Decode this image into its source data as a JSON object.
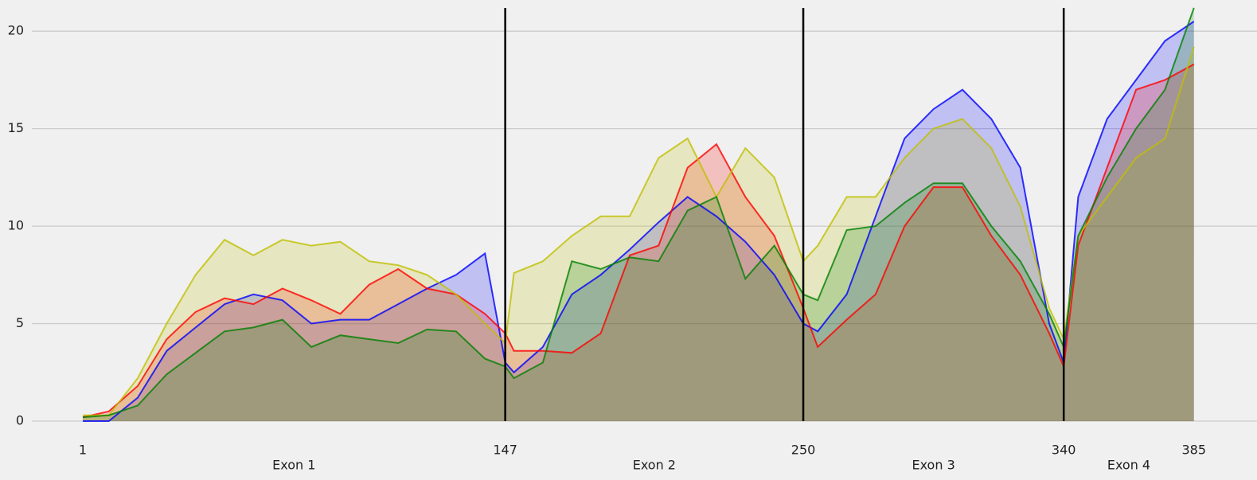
{
  "chart_data": {
    "type": "area",
    "x": [
      1,
      10,
      20,
      30,
      40,
      50,
      60,
      70,
      80,
      90,
      100,
      110,
      120,
      130,
      140,
      147,
      150,
      160,
      170,
      180,
      190,
      200,
      210,
      220,
      230,
      240,
      250,
      255,
      265,
      275,
      285,
      295,
      305,
      315,
      325,
      335,
      340,
      345,
      355,
      365,
      375,
      385
    ],
    "series": [
      {
        "color": "#0000ff",
        "values": [
          0,
          0,
          1.2,
          3.6,
          4.8,
          6,
          6.5,
          6.2,
          5.0,
          5.2,
          5.2,
          6.0,
          6.8,
          7.5,
          8.6,
          3.0,
          2.5,
          3.8,
          6.5,
          7.5,
          8.8,
          10.2,
          11.5,
          10.5,
          9.2,
          7.5,
          5.0,
          4.6,
          6.5,
          10.5,
          14.5,
          16,
          17,
          15.5,
          13,
          5.0,
          3.0,
          11.5,
          15.5,
          17.5,
          19.5,
          20.5
        ]
      },
      {
        "color": "#ff0000",
        "values": [
          0.2,
          0.5,
          1.8,
          4.2,
          5.6,
          6.3,
          6.0,
          6.8,
          6.2,
          5.5,
          7.0,
          7.8,
          6.8,
          6.5,
          5.5,
          4.5,
          3.6,
          3.6,
          3.5,
          4.5,
          8.5,
          9.0,
          13.0,
          14.2,
          11.5,
          9.5,
          5.8,
          3.8,
          5.2,
          6.5,
          10.0,
          12.0,
          12.0,
          9.5,
          7.5,
          4.5,
          2.8,
          9.0,
          13.0,
          17.0,
          17.5,
          18.3
        ]
      },
      {
        "color": "#bfbf00",
        "values": [
          0.3,
          0.3,
          2.2,
          5.0,
          7.5,
          9.3,
          8.5,
          9.3,
          9.0,
          9.2,
          8.2,
          8.0,
          7.5,
          6.5,
          5.0,
          4.0,
          7.6,
          8.2,
          9.5,
          10.5,
          10.5,
          13.5,
          14.5,
          11.5,
          14.0,
          12.5,
          8.2,
          9.0,
          11.5,
          11.5,
          13.5,
          15.0,
          15.5,
          14.0,
          11.0,
          5.8,
          4.2,
          9.5,
          11.5,
          13.5,
          14.5,
          19.2
        ]
      },
      {
        "color": "#008000",
        "values": [
          0.2,
          0.3,
          0.8,
          2.4,
          3.5,
          4.6,
          4.8,
          5.2,
          3.8,
          4.4,
          4.2,
          4.0,
          4.7,
          4.6,
          3.2,
          2.8,
          2.2,
          3.0,
          8.2,
          7.8,
          8.4,
          8.2,
          10.8,
          11.5,
          7.3,
          9.0,
          6.5,
          6.2,
          9.8,
          10.0,
          11.2,
          12.2,
          12.2,
          10.0,
          8.2,
          5.5,
          3.8,
          9.5,
          12.5,
          15.0,
          17.0,
          21.2
        ]
      }
    ],
    "xlim": [
      -27.6,
      406.8
    ],
    "ylim": [
      0,
      21.6
    ],
    "xticks": [
      1,
      147,
      250,
      340,
      385
    ],
    "yticks": [
      0,
      5,
      10,
      15,
      20
    ],
    "exons": [
      "Exon 1",
      "Exon 2",
      "Exon 3",
      "Exon 4"
    ],
    "grid": true
  }
}
